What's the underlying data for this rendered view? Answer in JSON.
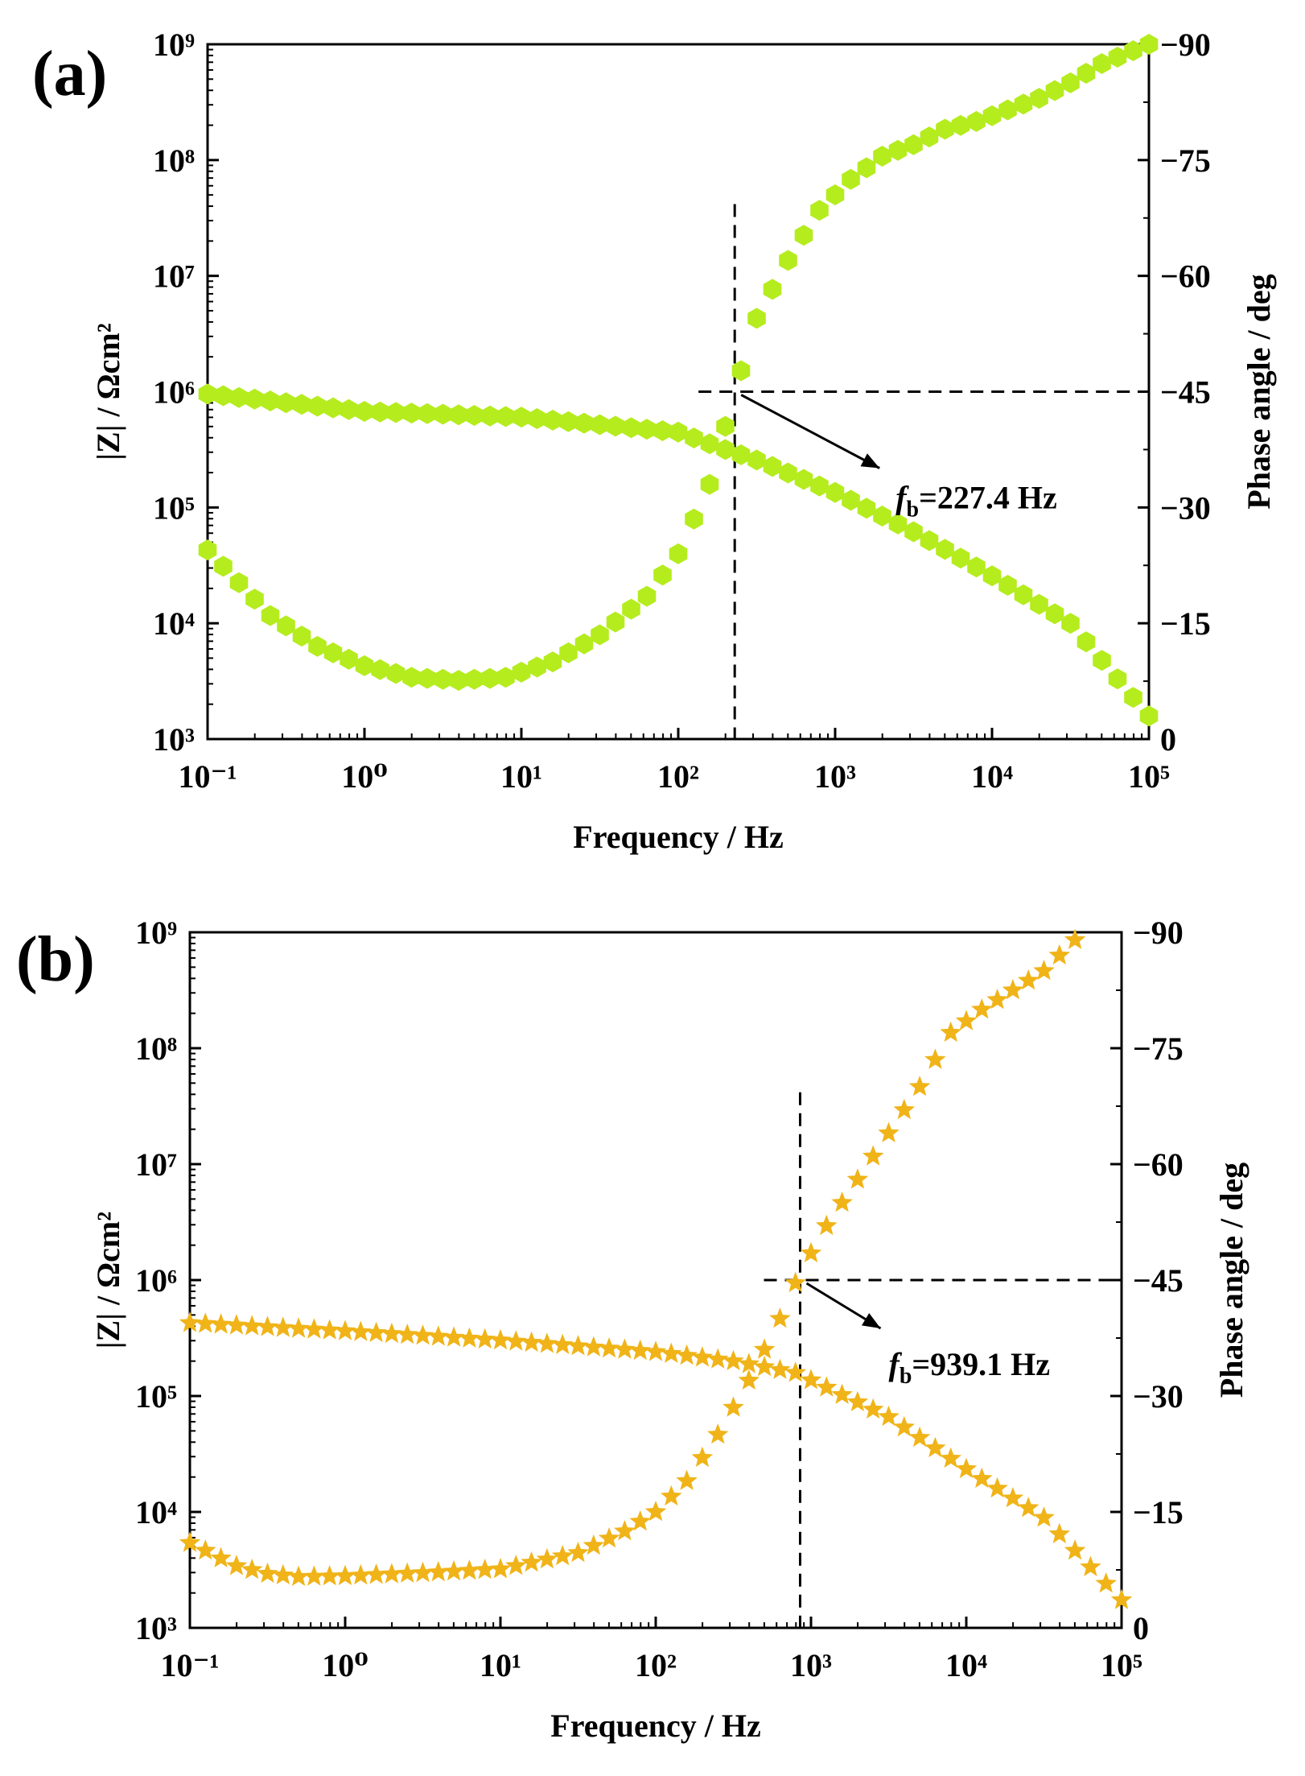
{
  "chart_data": [
    {
      "type": "scatter",
      "panel_label": "(a)",
      "xscale": "log",
      "xlabel": "Frequency / Hz",
      "ylabel_left": "|Z| / Ωcm²",
      "ylabel_right": "Phase angle  / deg",
      "xlim": [
        0.1,
        100000
      ],
      "ylim_left": [
        1000,
        1000000000
      ],
      "ylim_right": [
        0,
        -90
      ],
      "x_ticks": [
        "10⁻¹",
        "10⁰",
        "10¹",
        "10²",
        "10³",
        "10⁴",
        "10⁵"
      ],
      "y_ticks_left": [
        "10³",
        "10⁴",
        "10⁵",
        "10⁶",
        "10⁷",
        "10⁸",
        "10⁹"
      ],
      "y_ticks_right": [
        "0",
        "−15",
        "−30",
        "−45",
        "−60",
        "−75",
        "−90"
      ],
      "marker": "hexagon",
      "marker_color": "#b5ec1e",
      "series": [
        {
          "name": "|Z|",
          "axis": "left",
          "log10_freq": [
            -1.0,
            0.0,
            1.0,
            2.0,
            2.3,
            2.5,
            3.0,
            3.5,
            4.0,
            4.5,
            5.0
          ],
          "log10_value": [
            5.98,
            5.83,
            5.78,
            5.65,
            5.5,
            5.41,
            5.13,
            4.79,
            4.41,
            4.0,
            3.2
          ]
        },
        {
          "name": "Phase angle",
          "axis": "right",
          "log10_freq": [
            -1.0,
            -0.6,
            -0.3,
            0.0,
            0.3,
            0.6,
            0.9,
            1.2,
            1.5,
            1.8,
            2.0,
            2.2,
            2.36,
            2.5,
            2.7,
            2.9,
            3.1,
            3.3,
            3.5,
            3.7,
            3.9,
            4.1,
            4.3,
            4.5,
            4.7,
            5.0
          ],
          "value": [
            -24.5,
            -16,
            -12,
            -9.5,
            -8,
            -7.6,
            -8,
            -10,
            -13.5,
            -18.5,
            -24,
            -33,
            -45,
            -54.5,
            -62,
            -68.5,
            -72.5,
            -75.5,
            -77,
            -79,
            -80,
            -81.5,
            -83,
            -85,
            -87.5,
            -90
          ]
        }
      ],
      "annotation": {
        "label_base": "f",
        "label_sub": "b",
        "label_value": "=227.4 Hz",
        "log10_freq": 2.36,
        "phase": -45
      }
    },
    {
      "type": "scatter",
      "panel_label": "(b)",
      "xscale": "log",
      "xlabel": "Frequency / Hz",
      "ylabel_left": "|Z| / Ωcm²",
      "ylabel_right": "Phase angle  / deg",
      "xlim": [
        0.1,
        100000
      ],
      "ylim_left": [
        1000,
        1000000000
      ],
      "ylim_right": [
        0,
        -90
      ],
      "x_ticks": [
        "10⁻¹",
        "10⁰",
        "10¹",
        "10²",
        "10³",
        "10⁴",
        "10⁵"
      ],
      "y_ticks_left": [
        "10³",
        "10⁴",
        "10⁵",
        "10⁶",
        "10⁷",
        "10⁸",
        "10⁹"
      ],
      "y_ticks_right": [
        "0",
        "−15",
        "−30",
        "−45",
        "−60",
        "−75",
        "−90"
      ],
      "marker": "star",
      "marker_color": "#f0b419",
      "series": [
        {
          "name": "|Z|",
          "axis": "left",
          "log10_freq": [
            -1.0,
            0.0,
            1.0,
            2.0,
            2.5,
            2.9,
            3.5,
            4.0,
            4.5,
            5.0
          ],
          "log10_value": [
            5.63,
            5.56,
            5.48,
            5.38,
            5.3,
            5.2,
            4.82,
            4.37,
            3.95,
            3.24
          ]
        },
        {
          "name": "Phase angle",
          "axis": "right",
          "log10_freq": [
            -1.0,
            -0.7,
            -0.5,
            -0.3,
            0.0,
            0.5,
            1.0,
            1.5,
            1.8,
            2.0,
            2.2,
            2.4,
            2.6,
            2.8,
            2.93,
            3.1,
            3.3,
            3.5,
            3.7,
            3.9,
            4.1,
            4.3,
            4.5,
            4.75
          ],
          "value": [
            -11,
            -8,
            -7,
            -6.6,
            -6.7,
            -7.1,
            -7.6,
            -9.7,
            -12.5,
            -15,
            -19,
            -25,
            -32,
            -40,
            -46,
            -52,
            -58,
            -64,
            -70,
            -77,
            -80,
            -82.5,
            -85,
            -90
          ]
        }
      ],
      "annotation": {
        "label_base": "f",
        "label_sub": "b",
        "label_value": "=939.1 Hz",
        "log10_freq": 2.93,
        "phase": -45
      }
    }
  ]
}
